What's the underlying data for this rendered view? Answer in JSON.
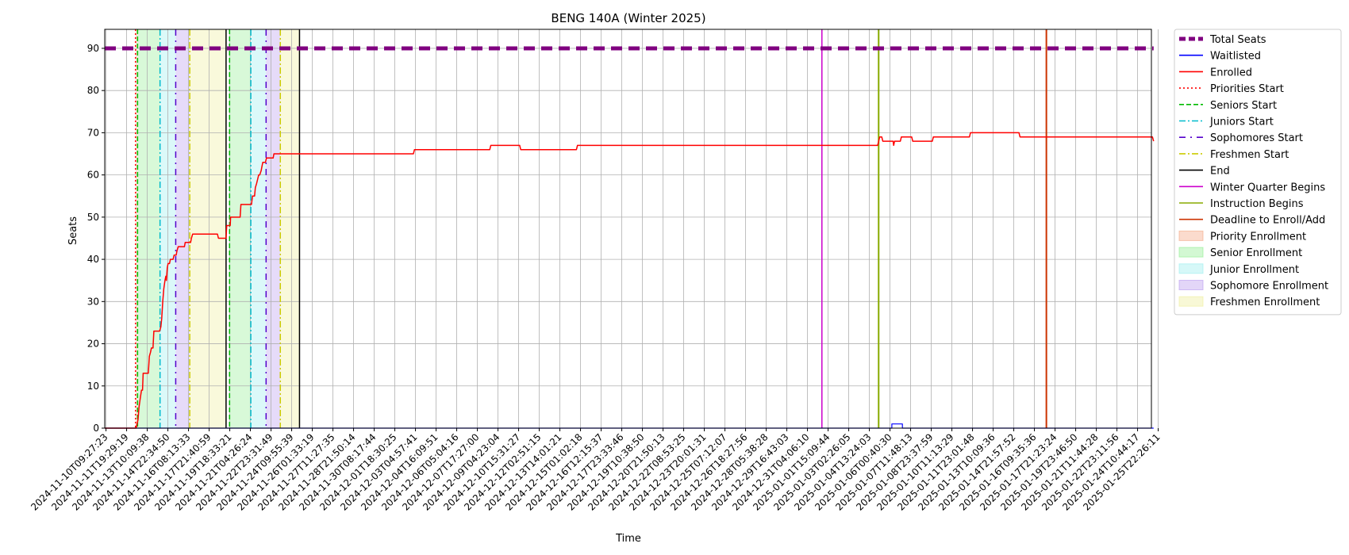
{
  "chart_data": {
    "type": "line",
    "title": "BENG 140A (Winter 2025)",
    "xlabel": "Time",
    "ylabel": "Seats",
    "ylim": [
      0,
      94.5
    ],
    "yticks": [
      0,
      10,
      20,
      30,
      40,
      50,
      60,
      70,
      80,
      90
    ],
    "grid": true,
    "legend_position": "outside-right",
    "x_tick_labels": [
      "2024-11-10T09:27:23",
      "2024-11-11T19:29:19",
      "2024-11-13T10:09:38",
      "2024-11-14T22:34:50",
      "2024-11-16T08:13:33",
      "2024-11-17T21:40:59",
      "2024-11-19T18:33:21",
      "2024-11-21T04:26:24",
      "2024-11-22T23:31:49",
      "2024-11-24T09:55:39",
      "2024-11-26T01:33:19",
      "2024-11-27T11:27:35",
      "2024-11-28T21:50:14",
      "2024-11-30T08:17:44",
      "2024-12-01T18:30:25",
      "2024-12-03T04:57:41",
      "2024-12-04T16:09:51",
      "2024-12-06T05:04:16",
      "2024-12-07T17:27:00",
      "2024-12-09T04:23:04",
      "2024-12-10T15:31:27",
      "2024-12-12T02:51:15",
      "2024-12-13T14:01:21",
      "2024-12-15T01:02:18",
      "2024-12-16T12:15:37",
      "2024-12-17T23:33:46",
      "2024-12-19T10:38:50",
      "2024-12-20T21:50:13",
      "2024-12-22T08:53:25",
      "2024-12-23T20:01:31",
      "2024-12-25T07:12:07",
      "2024-12-26T18:27:56",
      "2024-12-28T05:38:28",
      "2024-12-29T16:43:03",
      "2024-12-31T04:06:10",
      "2025-01-01T15:09:44",
      "2025-01-03T02:26:05",
      "2025-01-04T13:24:03",
      "2025-01-06T00:40:30",
      "2025-01-07T11:48:13",
      "2025-01-08T23:37:59",
      "2025-01-10T11:13:29",
      "2025-01-11T23:01:48",
      "2025-01-13T10:09:36",
      "2025-01-14T21:57:52",
      "2025-01-16T09:35:36",
      "2025-01-17T21:23:24",
      "2025-01-19T23:46:50",
      "2025-01-21T11:44:28",
      "2025-01-22T23:11:56",
      "2025-01-24T10:44:17",
      "2025-01-25T22:26:11"
    ],
    "x_range_tick_index": [
      -0.06,
      50.78
    ],
    "series": [
      {
        "name": "Total Seats",
        "color": "#800080",
        "style": "dashed-thick",
        "points": [
          [
            -0.06,
            90
          ],
          [
            50.78,
            90
          ]
        ]
      },
      {
        "name": "Waitlisted",
        "color": "#0000ff",
        "style": "solid-thin",
        "points": [
          [
            -0.06,
            0
          ],
          [
            38.09,
            0
          ],
          [
            38.09,
            1
          ],
          [
            38.6,
            1
          ],
          [
            38.6,
            0
          ],
          [
            50.78,
            0
          ]
        ]
      },
      {
        "name": "Enrolled",
        "color": "#ff0000",
        "style": "solid",
        "points": [
          [
            -0.06,
            0
          ],
          [
            1.46,
            0
          ],
          [
            1.55,
            2
          ],
          [
            1.6,
            5
          ],
          [
            1.66,
            7
          ],
          [
            1.72,
            9
          ],
          [
            1.77,
            9
          ],
          [
            1.8,
            13
          ],
          [
            2.05,
            13
          ],
          [
            2.1,
            17
          ],
          [
            2.16,
            18
          ],
          [
            2.2,
            19
          ],
          [
            2.28,
            19
          ],
          [
            2.32,
            23
          ],
          [
            2.6,
            23
          ],
          [
            2.66,
            24
          ],
          [
            2.7,
            26
          ],
          [
            2.75,
            30
          ],
          [
            2.8,
            33
          ],
          [
            2.86,
            35
          ],
          [
            2.9,
            36
          ],
          [
            2.93,
            35
          ],
          [
            2.97,
            38
          ],
          [
            3.01,
            39
          ],
          [
            3.08,
            39
          ],
          [
            3.12,
            40
          ],
          [
            3.25,
            40
          ],
          [
            3.3,
            41
          ],
          [
            3.4,
            41
          ],
          [
            3.44,
            42
          ],
          [
            3.5,
            43
          ],
          [
            3.8,
            43
          ],
          [
            3.84,
            44
          ],
          [
            4.1,
            44
          ],
          [
            4.14,
            45
          ],
          [
            4.2,
            46
          ],
          [
            5.4,
            46
          ],
          [
            5.45,
            45
          ],
          [
            5.82,
            45
          ],
          [
            5.85,
            48
          ],
          [
            6.02,
            48
          ],
          [
            6.04,
            50
          ],
          [
            6.5,
            50
          ],
          [
            6.54,
            53
          ],
          [
            7.05,
            53
          ],
          [
            7.1,
            55
          ],
          [
            7.2,
            55
          ],
          [
            7.24,
            57
          ],
          [
            7.3,
            58
          ],
          [
            7.35,
            59
          ],
          [
            7.4,
            60
          ],
          [
            7.45,
            60
          ],
          [
            7.52,
            61
          ],
          [
            7.56,
            62
          ],
          [
            7.6,
            63
          ],
          [
            7.73,
            63
          ],
          [
            7.78,
            64
          ],
          [
            8.1,
            64
          ],
          [
            8.14,
            65
          ],
          [
            14.9,
            65
          ],
          [
            14.95,
            66
          ],
          [
            18.6,
            66
          ],
          [
            18.65,
            67
          ],
          [
            20.05,
            67
          ],
          [
            20.1,
            66
          ],
          [
            22.8,
            66
          ],
          [
            22.85,
            67
          ],
          [
            37.2,
            67
          ],
          [
            37.4,
            67
          ],
          [
            37.45,
            68
          ],
          [
            37.5,
            69
          ],
          [
            37.6,
            69
          ],
          [
            37.65,
            68
          ],
          [
            38.15,
            68
          ],
          [
            38.18,
            67
          ],
          [
            38.22,
            68
          ],
          [
            38.5,
            68
          ],
          [
            38.55,
            69
          ],
          [
            39.05,
            69
          ],
          [
            39.1,
            68
          ],
          [
            40.05,
            68
          ],
          [
            40.1,
            69
          ],
          [
            41.85,
            69
          ],
          [
            41.9,
            70
          ],
          [
            44.25,
            70
          ],
          [
            44.3,
            69
          ],
          [
            50.72,
            69
          ],
          [
            50.78,
            68
          ]
        ]
      }
    ],
    "vertical_lines": [
      {
        "name": "Priorities Start",
        "color": "#ff0000",
        "style": "dotted",
        "x": 1.43
      },
      {
        "name": "Seniors Start",
        "color": "#00bb00",
        "style": "dashed",
        "x": 1.53
      },
      {
        "name": "Juniors Start",
        "color": "#00bbcc",
        "style": "dashdot",
        "x": 2.62
      },
      {
        "name": "Sophomores Start",
        "color": "#5500cc",
        "style": "dashdot-loose",
        "x": 3.38
      },
      {
        "name": "Freshmen Start",
        "color": "#cccc00",
        "style": "dashdot",
        "x": 4.06
      },
      {
        "name": "End",
        "color": "#000000",
        "style": "solid",
        "x": 5.82
      },
      {
        "name": "Seniors Start",
        "color": "#00bb00",
        "style": "dashed",
        "x": 5.99,
        "legend": false
      },
      {
        "name": "Juniors Start",
        "color": "#00bbcc",
        "style": "dashdot",
        "x": 7.02,
        "legend": false
      },
      {
        "name": "Sophomores Start",
        "color": "#5500cc",
        "style": "dashdot-loose",
        "x": 7.76,
        "legend": false
      },
      {
        "name": "Freshmen Start",
        "color": "#cccc00",
        "style": "dashdot",
        "x": 8.45,
        "legend": false
      },
      {
        "name": "End",
        "color": "#000000",
        "style": "solid",
        "x": 9.38,
        "legend": false
      },
      {
        "name": "Winter Quarter Begins",
        "color": "#cc00cc",
        "style": "solid",
        "x": 34.7
      },
      {
        "name": "Instruction Begins",
        "color": "#88aa00",
        "style": "solid-thick",
        "x": 37.45
      },
      {
        "name": "Deadline to Enroll/Add",
        "color": "#cc3300",
        "style": "solid-thick",
        "x": 45.58
      }
    ],
    "shaded_regions": [
      {
        "name": "Priority Enrollment",
        "color": "#f4a582",
        "x0": 1.43,
        "x1": 1.53
      },
      {
        "name": "Senior Enrollment",
        "color": "#90ee90",
        "x0": 1.53,
        "x1": 2.62
      },
      {
        "name": "Junior Enrollment",
        "color": "#99eeee",
        "x0": 2.62,
        "x1": 3.38
      },
      {
        "name": "Sophomore Enrollment",
        "color": "#b899ee",
        "x0": 3.38,
        "x1": 4.06
      },
      {
        "name": "Freshmen Enrollment",
        "color": "#eeee99",
        "x0": 4.06,
        "x1": 5.82
      },
      {
        "name": "Senior Enrollment",
        "color": "#90ee90",
        "x0": 5.99,
        "x1": 7.02,
        "legend": false
      },
      {
        "name": "Junior Enrollment",
        "color": "#99eeee",
        "x0": 7.02,
        "x1": 7.76,
        "legend": false
      },
      {
        "name": "Sophomore Enrollment",
        "color": "#b899ee",
        "x0": 7.76,
        "x1": 8.45,
        "legend": false
      },
      {
        "name": "Freshmen Enrollment",
        "color": "#eeee99",
        "x0": 8.45,
        "x1": 9.38,
        "legend": false
      }
    ],
    "legend": [
      {
        "label": "Total Seats",
        "kind": "line",
        "color": "#800080",
        "style": "dashed-thick"
      },
      {
        "label": "Waitlisted",
        "kind": "line",
        "color": "#0000ff",
        "style": "solid-thin"
      },
      {
        "label": "Enrolled",
        "kind": "line",
        "color": "#ff0000",
        "style": "solid"
      },
      {
        "label": "Priorities Start",
        "kind": "line",
        "color": "#ff0000",
        "style": "dotted"
      },
      {
        "label": "Seniors Start",
        "kind": "line",
        "color": "#00bb00",
        "style": "dashed"
      },
      {
        "label": "Juniors Start",
        "kind": "line",
        "color": "#00bbcc",
        "style": "dashdot"
      },
      {
        "label": "Sophomores Start",
        "kind": "line",
        "color": "#5500cc",
        "style": "dashdot-loose"
      },
      {
        "label": "Freshmen Start",
        "kind": "line",
        "color": "#cccc00",
        "style": "dashdot"
      },
      {
        "label": "End",
        "kind": "line",
        "color": "#000000",
        "style": "solid"
      },
      {
        "label": "Winter Quarter Begins",
        "kind": "line",
        "color": "#cc00cc",
        "style": "solid"
      },
      {
        "label": "Instruction Begins",
        "kind": "line",
        "color": "#88aa00",
        "style": "solid"
      },
      {
        "label": "Deadline to Enroll/Add",
        "kind": "line",
        "color": "#cc3300",
        "style": "solid"
      },
      {
        "label": "Priority Enrollment",
        "kind": "patch",
        "color": "#f4a582"
      },
      {
        "label": "Senior Enrollment",
        "kind": "patch",
        "color": "#90ee90"
      },
      {
        "label": "Junior Enrollment",
        "kind": "patch",
        "color": "#99eeee"
      },
      {
        "label": "Sophomore Enrollment",
        "kind": "patch",
        "color": "#b899ee"
      },
      {
        "label": "Freshmen Enrollment",
        "kind": "patch",
        "color": "#eeee99"
      }
    ]
  }
}
